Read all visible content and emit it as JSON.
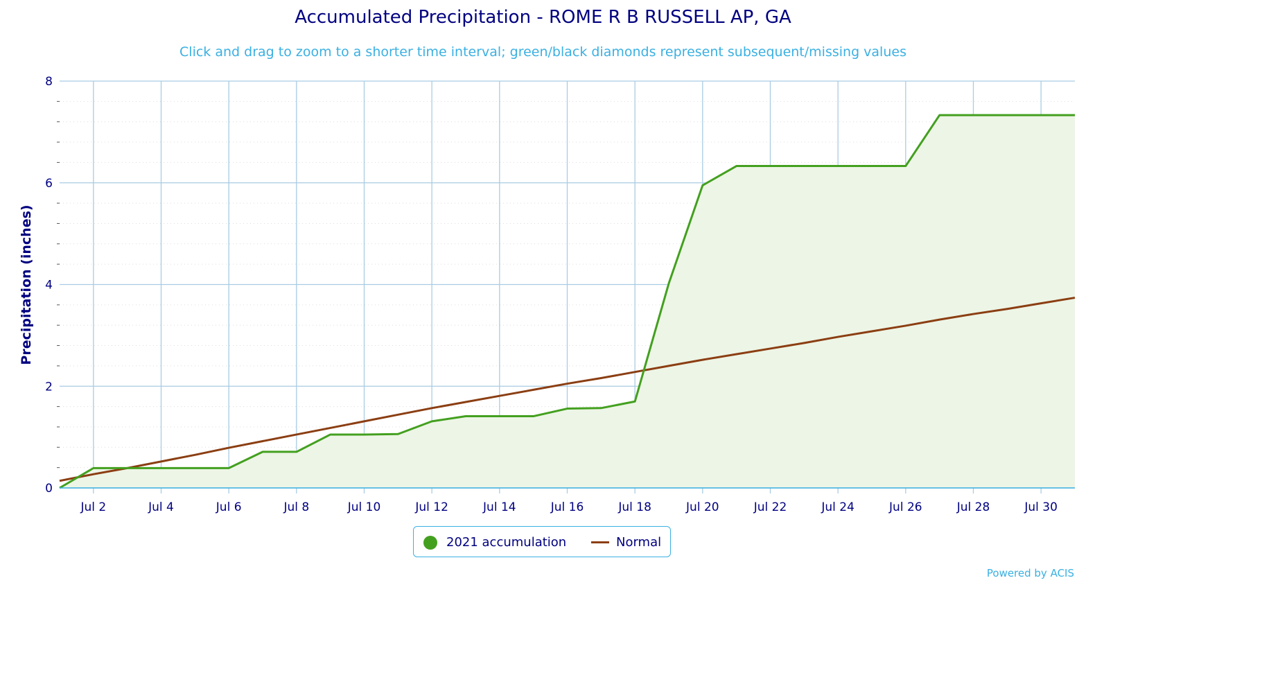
{
  "title": "Accumulated Precipitation - ROME R B RUSSELL AP, GA",
  "subtitle": "Click and drag to zoom to a shorter time interval; green/black diamonds represent subsequent/missing values",
  "credit": "Powered by ACIS",
  "colors": {
    "accumulation_line": "#43a01f",
    "accumulation_fill": "#edf5e6",
    "normal_line": "#8b3e12",
    "grid": "#a9cce3",
    "axis_text": "#000080"
  },
  "chart_data": {
    "type": "area",
    "ylabel": "Precipitation (inches)",
    "ylim": [
      0,
      8
    ],
    "yticks": [
      0,
      2,
      4,
      6,
      8
    ],
    "xlim": [
      1,
      31
    ],
    "xticks": [
      {
        "day": 2,
        "label": "Jul 2"
      },
      {
        "day": 4,
        "label": "Jul 4"
      },
      {
        "day": 6,
        "label": "Jul 6"
      },
      {
        "day": 8,
        "label": "Jul 8"
      },
      {
        "day": 10,
        "label": "Jul 10"
      },
      {
        "day": 12,
        "label": "Jul 12"
      },
      {
        "day": 14,
        "label": "Jul 14"
      },
      {
        "day": 16,
        "label": "Jul 16"
      },
      {
        "day": 18,
        "label": "Jul 18"
      },
      {
        "day": 20,
        "label": "Jul 20"
      },
      {
        "day": 22,
        "label": "Jul 22"
      },
      {
        "day": 24,
        "label": "Jul 24"
      },
      {
        "day": 26,
        "label": "Jul 26"
      },
      {
        "day": 28,
        "label": "Jul 28"
      },
      {
        "day": 30,
        "label": "Jul 30"
      }
    ],
    "grid": true,
    "legend_position": "bottom-center",
    "series": [
      {
        "name": "2021 accumulation",
        "type": "area",
        "x": [
          1,
          2,
          3,
          4,
          5,
          6,
          7,
          8,
          9,
          10,
          11,
          12,
          13,
          14,
          15,
          16,
          17,
          18,
          19,
          20,
          21,
          22,
          23,
          24,
          25,
          26,
          27,
          28,
          29,
          30,
          31
        ],
        "values": [
          0.0,
          0.39,
          0.39,
          0.39,
          0.39,
          0.39,
          0.71,
          0.71,
          1.05,
          1.05,
          1.06,
          1.31,
          1.41,
          1.41,
          1.41,
          1.56,
          1.57,
          1.7,
          4.02,
          5.95,
          6.33,
          6.33,
          6.33,
          6.33,
          6.33,
          6.33,
          7.33,
          7.33,
          7.33,
          7.33,
          7.33
        ]
      },
      {
        "name": "Normal",
        "type": "line",
        "x": [
          1,
          2,
          3,
          4,
          5,
          6,
          7,
          8,
          9,
          10,
          11,
          12,
          13,
          14,
          15,
          16,
          17,
          18,
          19,
          20,
          21,
          22,
          23,
          24,
          25,
          26,
          27,
          28,
          29,
          30,
          31
        ],
        "values": [
          0.14,
          0.27,
          0.39,
          0.52,
          0.65,
          0.79,
          0.92,
          1.05,
          1.18,
          1.31,
          1.44,
          1.57,
          1.69,
          1.81,
          1.93,
          2.05,
          2.16,
          2.28,
          2.4,
          2.52,
          2.63,
          2.74,
          2.85,
          2.97,
          3.08,
          3.19,
          3.31,
          3.42,
          3.52,
          3.63,
          3.74
        ]
      }
    ]
  }
}
